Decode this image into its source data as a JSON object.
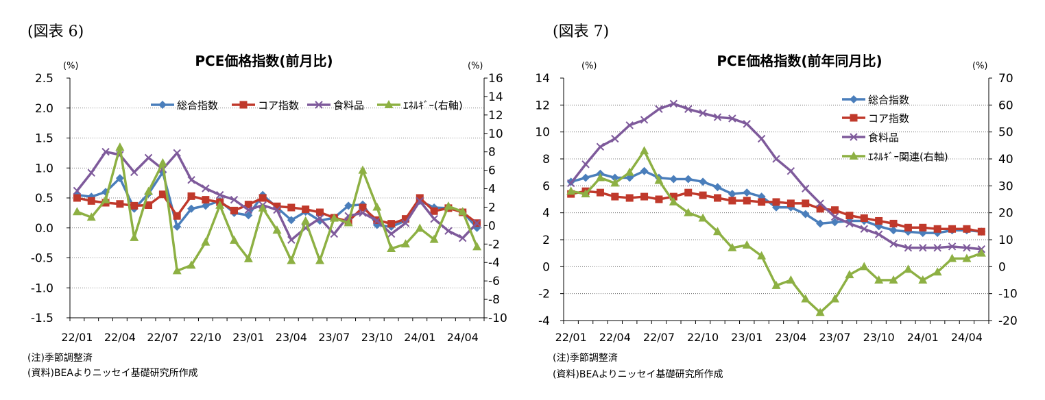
{
  "panels": [
    {
      "figure_label": "(図表 6)",
      "notes": [
        "(注)季節調整済",
        "(資料)BEAよりニッセイ基礎研究所作成"
      ]
    },
    {
      "figure_label": "(図表 7)",
      "notes": [
        "(注)季節調整済",
        "(資料)BEAよりニッセイ基礎研究所作成"
      ]
    }
  ],
  "colors": {
    "total": "#4A7EBB",
    "core": "#C0392B",
    "food": "#7E5A9B",
    "energy": "#8DB043"
  },
  "chart_data": [
    {
      "type": "line",
      "title": "PCE価格指数(前月比)",
      "y_unit_left": "(%)",
      "y_unit_right": "(%)",
      "ylim_left": [
        -1.5,
        2.5
      ],
      "ylim_right": [
        -10,
        16
      ],
      "yticks_left": [
        "2.5",
        "2.0",
        "1.5",
        "1.0",
        "0.5",
        "0.0",
        "-0.5",
        "-1.0",
        "-1.5"
      ],
      "yticks_right": [
        "16",
        "14",
        "12",
        "10",
        "8",
        "6",
        "4",
        "2",
        "0",
        "-2",
        "-4",
        "-6",
        "-8",
        "-10"
      ],
      "x": [
        "22/01",
        "22/02",
        "22/03",
        "22/04",
        "22/05",
        "22/06",
        "22/07",
        "22/08",
        "22/09",
        "22/10",
        "22/11",
        "22/12",
        "23/01",
        "23/02",
        "23/03",
        "23/04",
        "23/05",
        "23/06",
        "23/07",
        "23/08",
        "23/09",
        "23/10",
        "23/11",
        "23/12",
        "24/01",
        "24/02",
        "24/03",
        "24/04",
        "24/05"
      ],
      "xtick_labels": [
        "22/01",
        "22/04",
        "22/07",
        "22/10",
        "23/01",
        "23/04",
        "23/07",
        "23/10",
        "24/01",
        "24/04"
      ],
      "grid": true,
      "legend_position": "top",
      "series": [
        {
          "name": "総合指数",
          "axis": "left",
          "marker": "diamond",
          "color_key": "total",
          "values": [
            0.55,
            0.52,
            0.6,
            0.83,
            0.32,
            0.57,
            0.93,
            0.02,
            0.32,
            0.37,
            0.45,
            0.25,
            0.21,
            0.55,
            0.34,
            0.13,
            0.27,
            0.12,
            0.17,
            0.37,
            0.39,
            0.05,
            0.02,
            0.12,
            0.45,
            0.34,
            0.33,
            0.27,
            0.0
          ]
        },
        {
          "name": "コア指数",
          "axis": "left",
          "marker": "square",
          "color_key": "core",
          "values": [
            0.5,
            0.45,
            0.42,
            0.4,
            0.37,
            0.38,
            0.56,
            0.2,
            0.53,
            0.47,
            0.43,
            0.29,
            0.39,
            0.5,
            0.36,
            0.34,
            0.31,
            0.26,
            0.17,
            0.11,
            0.34,
            0.13,
            0.07,
            0.15,
            0.5,
            0.28,
            0.33,
            0.26,
            0.08
          ]
        },
        {
          "name": "食料品",
          "axis": "left",
          "marker": "x",
          "color_key": "food",
          "values": [
            0.62,
            0.92,
            1.27,
            1.22,
            0.93,
            1.17,
            0.98,
            1.25,
            0.8,
            0.66,
            0.55,
            0.47,
            0.3,
            0.38,
            0.3,
            -0.2,
            0.0,
            0.16,
            -0.1,
            0.2,
            0.25,
            0.12,
            -0.1,
            0.08,
            0.45,
            0.15,
            -0.05,
            -0.17,
            0.08
          ]
        },
        {
          "name": "ｴﾈﾙｷﾞｰ(右軸)",
          "axis": "right",
          "marker": "triangle",
          "color_key": "energy",
          "values": [
            1.5,
            0.9,
            2.8,
            8.5,
            -1.3,
            3.7,
            6.8,
            -4.9,
            -4.3,
            -1.8,
            2.2,
            -1.6,
            -3.6,
            1.9,
            -0.5,
            -3.8,
            0.5,
            -3.8,
            0.8,
            0.3,
            6.0,
            2.0,
            -2.5,
            -2.0,
            -0.3,
            -1.5,
            2.1,
            1.5,
            -2.3
          ]
        }
      ]
    },
    {
      "type": "line",
      "title": "PCE価格指数(前年同月比)",
      "y_unit_left": "(%)",
      "y_unit_right": "(%)",
      "ylim_left": [
        -4,
        14
      ],
      "ylim_right": [
        -20,
        70
      ],
      "yticks_left": [
        "14",
        "12",
        "10",
        "8",
        "6",
        "4",
        "2",
        "0",
        "-2",
        "-4"
      ],
      "yticks_right": [
        "70",
        "60",
        "50",
        "40",
        "30",
        "20",
        "10",
        "0",
        "-10",
        "-20"
      ],
      "x": [
        "22/01",
        "22/02",
        "22/03",
        "22/04",
        "22/05",
        "22/06",
        "22/07",
        "22/08",
        "22/09",
        "22/10",
        "22/11",
        "22/12",
        "23/01",
        "23/02",
        "23/03",
        "23/04",
        "23/05",
        "23/06",
        "23/07",
        "23/08",
        "23/09",
        "23/10",
        "23/11",
        "23/12",
        "24/01",
        "24/02",
        "24/03",
        "24/04",
        "24/05"
      ],
      "xtick_labels": [
        "22/01",
        "22/04",
        "22/07",
        "22/10",
        "23/01",
        "23/04",
        "23/07",
        "23/10",
        "24/01",
        "24/04"
      ],
      "grid": true,
      "legend_position": "top-right",
      "series": [
        {
          "name": "総合指数",
          "axis": "left",
          "marker": "diamond",
          "color_key": "total",
          "values": [
            6.3,
            6.6,
            6.9,
            6.6,
            6.6,
            7.1,
            6.6,
            6.5,
            6.5,
            6.3,
            5.9,
            5.4,
            5.5,
            5.2,
            4.4,
            4.4,
            3.9,
            3.2,
            3.3,
            3.4,
            3.4,
            3.0,
            2.7,
            2.6,
            2.5,
            2.5,
            2.7,
            2.7,
            2.6
          ]
        },
        {
          "name": "コア指数",
          "axis": "left",
          "marker": "square",
          "color_key": "core",
          "values": [
            5.4,
            5.6,
            5.5,
            5.2,
            5.1,
            5.2,
            5.0,
            5.2,
            5.5,
            5.3,
            5.1,
            4.9,
            4.9,
            4.8,
            4.8,
            4.7,
            4.7,
            4.3,
            4.2,
            3.8,
            3.6,
            3.4,
            3.2,
            2.9,
            2.9,
            2.8,
            2.8,
            2.8,
            2.6
          ]
        },
        {
          "name": "食料品",
          "axis": "left",
          "marker": "x",
          "color_key": "food",
          "values": [
            6.2,
            7.6,
            8.9,
            9.5,
            10.5,
            10.9,
            11.7,
            12.1,
            11.7,
            11.4,
            11.1,
            11.0,
            10.6,
            9.5,
            8.0,
            7.1,
            5.8,
            4.7,
            3.7,
            3.2,
            2.8,
            2.4,
            1.7,
            1.4,
            1.4,
            1.4,
            1.5,
            1.4,
            1.3
          ]
        },
        {
          "name": "ｴﾈﾙｷﾞｰ関連(右軸)",
          "axis": "right",
          "marker": "triangle",
          "color_key": "energy",
          "values": [
            28,
            27,
            33,
            31,
            35,
            43,
            32,
            24,
            20,
            18,
            13,
            7,
            8,
            4,
            -7,
            -5,
            -12,
            -17,
            -12,
            -3,
            0,
            -5,
            -5,
            -1,
            -5,
            -2,
            3,
            3,
            5
          ]
        }
      ]
    }
  ]
}
